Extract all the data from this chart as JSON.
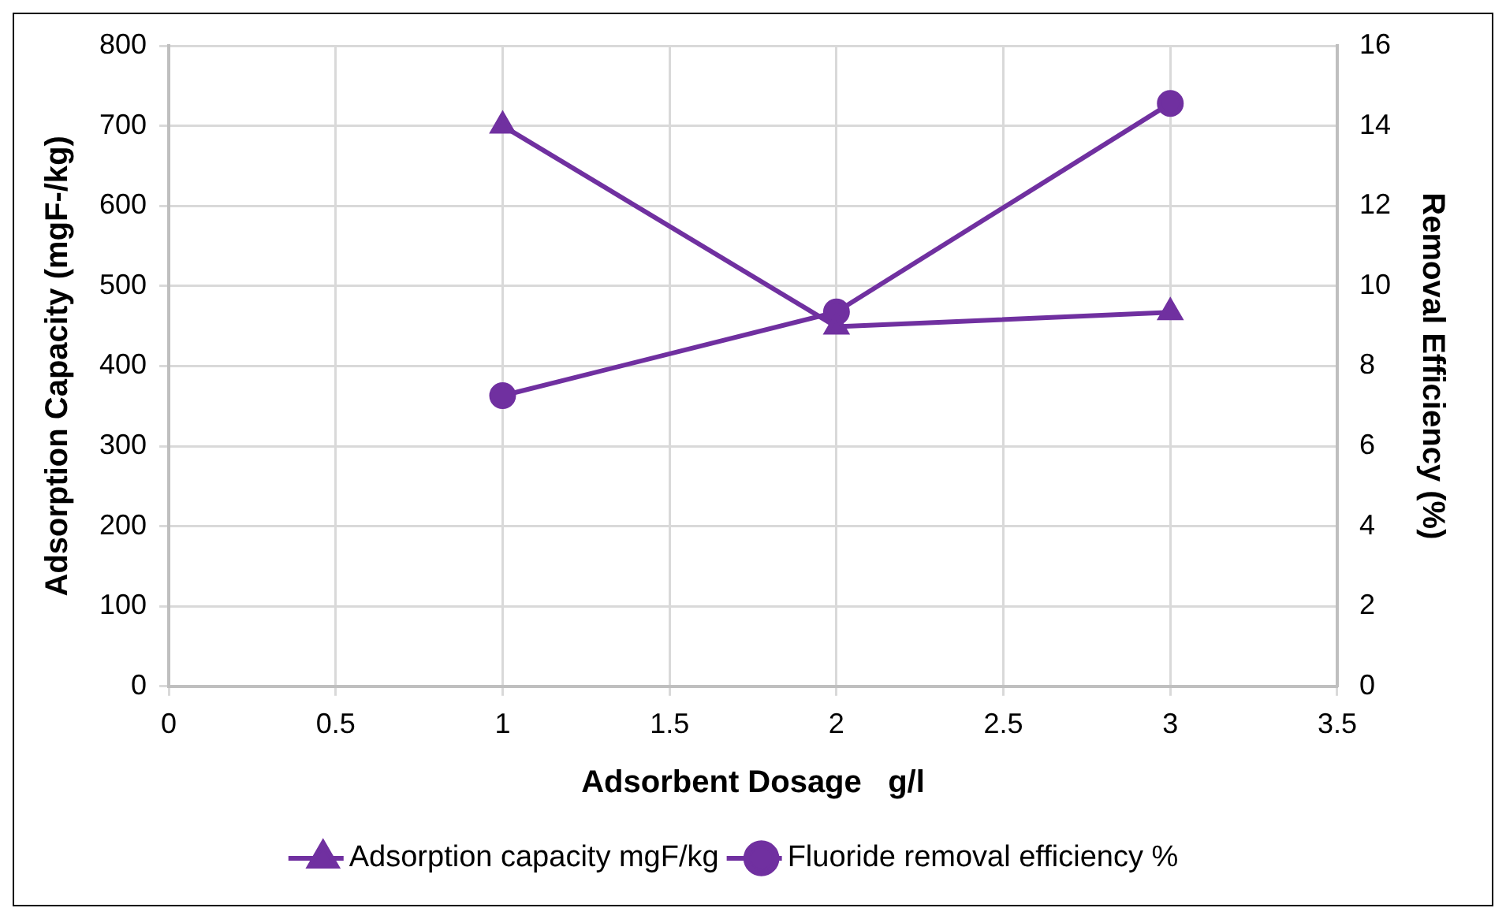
{
  "chart_data": {
    "type": "line",
    "xlabel": "Adsorbent Dosage   g/l",
    "ylabel": "Adsorption Capacity (mgF-/kg)",
    "y2label": "Removal Efficiency (%)",
    "x": [
      1,
      2,
      3
    ],
    "series": [
      {
        "name": "Adsorption capacity mgF/kg",
        "color": "#7030a0",
        "marker": "triangle",
        "values": [
          700,
          449,
          467
        ]
      },
      {
        "name": "Fluoride removal efficiency %",
        "color": "#7030a0",
        "marker": "circle",
        "axis": "y2",
        "values": [
          7.26,
          9.35,
          14.56
        ]
      }
    ],
    "xlim": [
      0,
      3.5
    ],
    "xticks": [
      0,
      0.5,
      1,
      1.5,
      2,
      2.5,
      3,
      3.5
    ],
    "ylim": [
      0,
      800
    ],
    "yticks": [
      0,
      100,
      200,
      300,
      400,
      500,
      600,
      700,
      800
    ],
    "y2lim": [
      0,
      16
    ],
    "y2ticks": [
      0,
      2,
      4,
      6,
      8,
      10,
      12,
      14,
      16
    ],
    "grid": true,
    "legend": "bottom"
  }
}
